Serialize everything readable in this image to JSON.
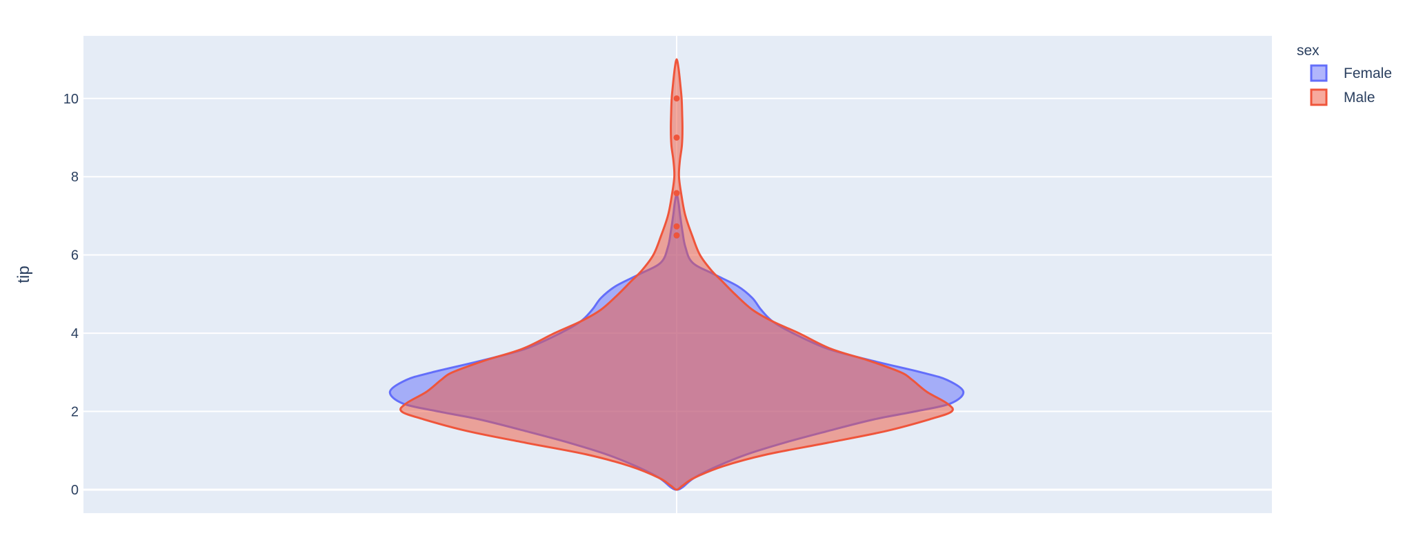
{
  "chart_data": {
    "type": "violin",
    "title": "",
    "xlabel": "",
    "ylabel": "tip",
    "ylim": [
      -0.6,
      11.6
    ],
    "yticks": [
      0,
      2,
      4,
      6,
      8,
      10
    ],
    "grid": true,
    "legend": {
      "title": "sex",
      "position": "top-right"
    },
    "background_color": "#e5ecf6",
    "series": [
      {
        "name": "Female",
        "color": "#636efa",
        "fill": "rgba(99,110,250,0.5)",
        "density": [
          [
            0.0,
            0.0
          ],
          [
            0.06,
            0.02
          ],
          [
            0.3,
            0.06
          ],
          [
            0.6,
            0.14
          ],
          [
            0.9,
            0.24
          ],
          [
            1.2,
            0.37
          ],
          [
            1.5,
            0.52
          ],
          [
            1.8,
            0.68
          ],
          [
            2.0,
            0.82
          ],
          [
            2.2,
            0.94
          ],
          [
            2.5,
            0.985
          ],
          [
            2.8,
            0.93
          ],
          [
            3.0,
            0.84
          ],
          [
            3.3,
            0.67
          ],
          [
            3.6,
            0.52
          ],
          [
            4.0,
            0.4
          ],
          [
            4.3,
            0.33
          ],
          [
            4.6,
            0.29
          ],
          [
            4.9,
            0.26
          ],
          [
            5.2,
            0.21
          ],
          [
            5.5,
            0.13
          ],
          [
            5.8,
            0.055
          ],
          [
            6.2,
            0.03
          ],
          [
            6.6,
            0.02
          ],
          [
            7.0,
            0.012
          ],
          [
            7.3,
            0.007
          ],
          [
            7.55,
            0.0
          ]
        ],
        "outliers": [
          6.5
        ]
      },
      {
        "name": "Male",
        "color": "#ef553b",
        "fill": "rgba(239,85,59,0.5)",
        "density": [
          [
            0.0,
            0.0
          ],
          [
            0.1,
            0.02
          ],
          [
            0.3,
            0.06
          ],
          [
            0.6,
            0.16
          ],
          [
            0.9,
            0.31
          ],
          [
            1.2,
            0.52
          ],
          [
            1.5,
            0.72
          ],
          [
            1.8,
            0.87
          ],
          [
            2.0,
            0.945
          ],
          [
            2.2,
            0.93
          ],
          [
            2.5,
            0.86
          ],
          [
            2.8,
            0.81
          ],
          [
            3.0,
            0.77
          ],
          [
            3.3,
            0.66
          ],
          [
            3.6,
            0.53
          ],
          [
            4.0,
            0.42
          ],
          [
            4.3,
            0.33
          ],
          [
            4.6,
            0.26
          ],
          [
            5.0,
            0.2
          ],
          [
            5.3,
            0.16
          ],
          [
            5.6,
            0.12
          ],
          [
            6.0,
            0.08
          ],
          [
            6.5,
            0.053
          ],
          [
            7.0,
            0.03
          ],
          [
            7.5,
            0.017
          ],
          [
            8.0,
            0.008
          ],
          [
            8.4,
            0.011
          ],
          [
            8.8,
            0.018
          ],
          [
            9.2,
            0.02
          ],
          [
            9.6,
            0.019
          ],
          [
            10.0,
            0.017
          ],
          [
            10.4,
            0.012
          ],
          [
            10.8,
            0.006
          ],
          [
            11.0,
            0.0
          ]
        ],
        "outliers": [
          6.5,
          6.73,
          7.58,
          9.0,
          10.0
        ]
      }
    ]
  }
}
